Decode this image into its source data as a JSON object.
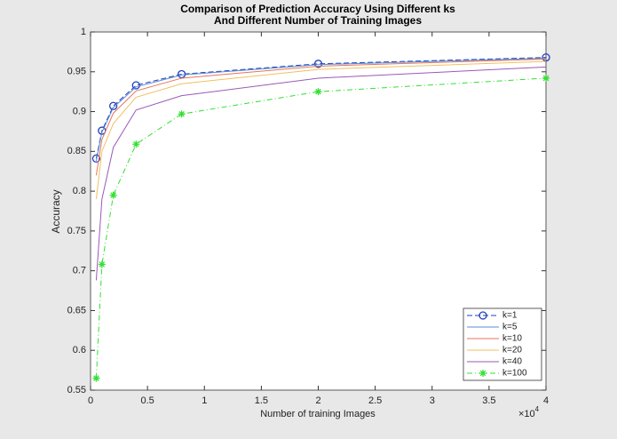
{
  "chart_data": {
    "type": "line",
    "title": [
      "Comparison of Prediction Accuracy Using Different ks",
      "And Different Number of Training Images"
    ],
    "x_label": "Number of training Images",
    "y_label": "Accuracy",
    "x_multiplier_base": "×10",
    "x_multiplier_exponent": "4",
    "x": [
      500,
      1000,
      2000,
      4000,
      8000,
      20000,
      40000
    ],
    "series": [
      {
        "name": "k=1",
        "color": "#1f3fbf",
        "line_style": "dashed",
        "marker": "circle",
        "values": [
          0.841,
          0.876,
          0.907,
          0.933,
          0.947,
          0.96,
          0.968
        ]
      },
      {
        "name": "k=5",
        "color": "#5a8fd0",
        "line_style": "solid",
        "marker": "none",
        "values": [
          0.838,
          0.874,
          0.905,
          0.931,
          0.946,
          0.959,
          0.967
        ]
      },
      {
        "name": "k=10",
        "color": "#e8735a",
        "line_style": "solid",
        "marker": "none",
        "values": [
          0.82,
          0.865,
          0.898,
          0.926,
          0.942,
          0.957,
          0.966
        ]
      },
      {
        "name": "k=20",
        "color": "#f0c060",
        "line_style": "solid",
        "marker": "none",
        "values": [
          0.79,
          0.85,
          0.885,
          0.918,
          0.935,
          0.953,
          0.963
        ]
      },
      {
        "name": "k=40",
        "color": "#9b59b6",
        "line_style": "solid",
        "marker": "none",
        "values": [
          0.688,
          0.79,
          0.855,
          0.902,
          0.92,
          0.942,
          0.956
        ]
      },
      {
        "name": "k=100",
        "color": "#33e033",
        "line_style": "dashdot",
        "marker": "star",
        "values": [
          0.565,
          0.708,
          0.795,
          0.859,
          0.897,
          0.925,
          0.942
        ]
      }
    ],
    "xlim": [
      0,
      40000
    ],
    "xticks": [
      0,
      {
        "value": 5000,
        "label": "0.5"
      },
      {
        "value": 10000,
        "label": "1"
      },
      {
        "value": 15000,
        "label": "1.5"
      },
      {
        "value": 20000,
        "label": "2"
      },
      {
        "value": 25000,
        "label": "2.5"
      },
      {
        "value": 30000,
        "label": "3"
      },
      {
        "value": 35000,
        "label": "3.5"
      },
      {
        "value": 40000,
        "label": "4"
      }
    ],
    "ylim": [
      0.55,
      1
    ],
    "yticks": [
      0.55,
      0.6,
      0.65,
      0.7,
      0.75,
      0.8,
      0.85,
      0.9,
      0.95,
      1
    ],
    "grid": false,
    "legend_position": "lower right"
  }
}
